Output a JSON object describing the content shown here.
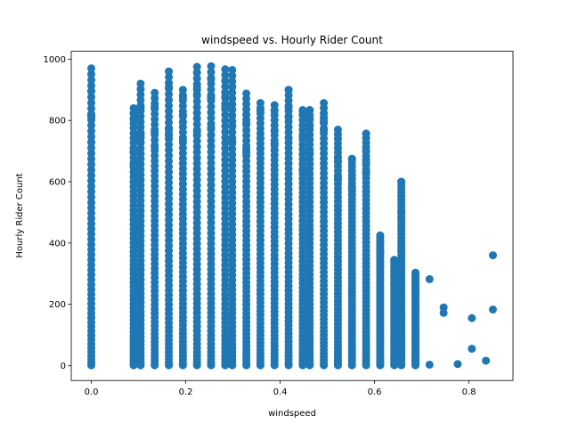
{
  "chart_data": {
    "type": "scatter",
    "title": "windspeed vs. Hourly Rider Count",
    "xlabel": "windspeed",
    "ylabel": "Hourly Rider Count",
    "xlim": [
      -0.0425,
      0.8932
    ],
    "ylim": [
      -48.7,
      1025.7
    ],
    "xticks": [
      0.0,
      0.2,
      0.4,
      0.6,
      0.8
    ],
    "xtick_labels": [
      "0.0",
      "0.2",
      "0.4",
      "0.6",
      "0.8"
    ],
    "yticks": [
      0,
      200,
      400,
      600,
      800,
      1000
    ],
    "ytick_labels": [
      "0",
      "200",
      "400",
      "600",
      "800",
      "1000"
    ],
    "grid": false,
    "legend": "none",
    "marker_color": "#1f77b4",
    "columns_approx": [
      {
        "x": 0.0,
        "ymin": 1,
        "ymax": 970
      },
      {
        "x": 0.0896,
        "ymin": 1,
        "ymax": 840
      },
      {
        "x": 0.1045,
        "ymin": 1,
        "ymax": 920
      },
      {
        "x": 0.1343,
        "ymin": 1,
        "ymax": 890
      },
      {
        "x": 0.1642,
        "ymin": 1,
        "ymax": 960
      },
      {
        "x": 0.194,
        "ymin": 1,
        "ymax": 900
      },
      {
        "x": 0.2239,
        "ymin": 1,
        "ymax": 975
      },
      {
        "x": 0.2537,
        "ymin": 1,
        "ymax": 977
      },
      {
        "x": 0.2836,
        "ymin": 1,
        "ymax": 967
      },
      {
        "x": 0.2985,
        "ymin": 1,
        "ymax": 965
      },
      {
        "x": 0.3284,
        "ymin": 1,
        "ymax": 888
      },
      {
        "x": 0.3582,
        "ymin": 1,
        "ymax": 857
      },
      {
        "x": 0.3881,
        "ymin": 1,
        "ymax": 850
      },
      {
        "x": 0.4179,
        "ymin": 1,
        "ymax": 900
      },
      {
        "x": 0.4478,
        "ymin": 1,
        "ymax": 834
      },
      {
        "x": 0.4627,
        "ymin": 1,
        "ymax": 834
      },
      {
        "x": 0.4925,
        "ymin": 1,
        "ymax": 857
      },
      {
        "x": 0.5224,
        "ymin": 1,
        "ymax": 770
      },
      {
        "x": 0.5522,
        "ymin": 1,
        "ymax": 675
      },
      {
        "x": 0.5821,
        "ymin": 1,
        "ymax": 757
      },
      {
        "x": 0.6119,
        "ymin": 1,
        "ymax": 425
      },
      {
        "x": 0.6418,
        "ymin": 1,
        "ymax": 345
      },
      {
        "x": 0.6567,
        "ymin": 1,
        "ymax": 600
      },
      {
        "x": 0.6866,
        "ymin": 1,
        "ymax": 303
      }
    ],
    "sparse_points": [
      {
        "x": 0.4179,
        "y": 900
      },
      {
        "x": 0.5821,
        "y": 757
      },
      {
        "x": 0.5522,
        "y": 675
      },
      {
        "x": 0.5821,
        "y": 568
      },
      {
        "x": 0.6567,
        "y": 600
      },
      {
        "x": 0.6567,
        "y": 375
      },
      {
        "x": 0.6418,
        "y": 345
      },
      {
        "x": 0.6418,
        "y": 305
      },
      {
        "x": 0.6866,
        "y": 303
      },
      {
        "x": 0.6866,
        "y": 185
      },
      {
        "x": 0.6866,
        "y": 88
      },
      {
        "x": 0.6866,
        "y": 15
      },
      {
        "x": 0.6866,
        "y": 3
      },
      {
        "x": 0.7164,
        "y": 282
      },
      {
        "x": 0.7164,
        "y": 3
      },
      {
        "x": 0.7463,
        "y": 190
      },
      {
        "x": 0.7463,
        "y": 172
      },
      {
        "x": 0.7761,
        "y": 5
      },
      {
        "x": 0.806,
        "y": 155
      },
      {
        "x": 0.806,
        "y": 55
      },
      {
        "x": 0.8358,
        "y": 16
      },
      {
        "x": 0.8507,
        "y": 360
      },
      {
        "x": 0.8507,
        "y": 183
      }
    ]
  }
}
